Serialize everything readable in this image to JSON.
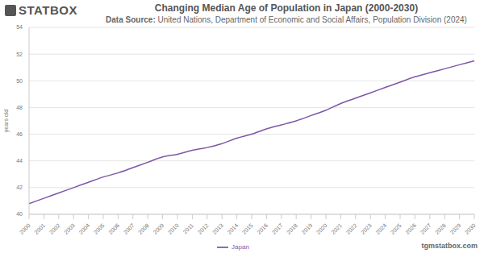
{
  "chart_data": {
    "type": "line",
    "title": "Changing Median Age of Population in Japan (2000-2030)",
    "subtitle": "Data Source: United Nations, Department of Economic and Social Affairs, Population Division (2024)",
    "logo": "STATBOX",
    "watermark": "tgmstatbox.com",
    "y_label": "years old",
    "categories": [
      "2000",
      "2001",
      "2002",
      "2003",
      "2004",
      "2005",
      "2006",
      "2007",
      "2008",
      "2009",
      "2010",
      "2011",
      "2012",
      "2013",
      "2014",
      "2015",
      "2016",
      "2017",
      "2018",
      "2019",
      "2020",
      "2021",
      "2022",
      "2023",
      "2024",
      "2025",
      "2026",
      "2027",
      "2028",
      "2029",
      "2030"
    ],
    "series": [
      {
        "name": "Japan",
        "color": "#7e57a8",
        "values": [
          40.8,
          41.2,
          41.6,
          42.0,
          42.4,
          42.8,
          43.1,
          43.5,
          43.9,
          44.3,
          44.5,
          44.8,
          45.0,
          45.3,
          45.7,
          46.0,
          46.4,
          46.7,
          47.0,
          47.4,
          47.8,
          48.3,
          48.7,
          49.1,
          49.5,
          49.9,
          50.3,
          50.6,
          50.9,
          51.2,
          51.5
        ]
      }
    ],
    "ylim": [
      40,
      54
    ],
    "yticks": [
      40,
      42,
      44,
      46,
      48,
      50,
      52,
      54
    ],
    "grid": true,
    "legend": "bottom"
  }
}
